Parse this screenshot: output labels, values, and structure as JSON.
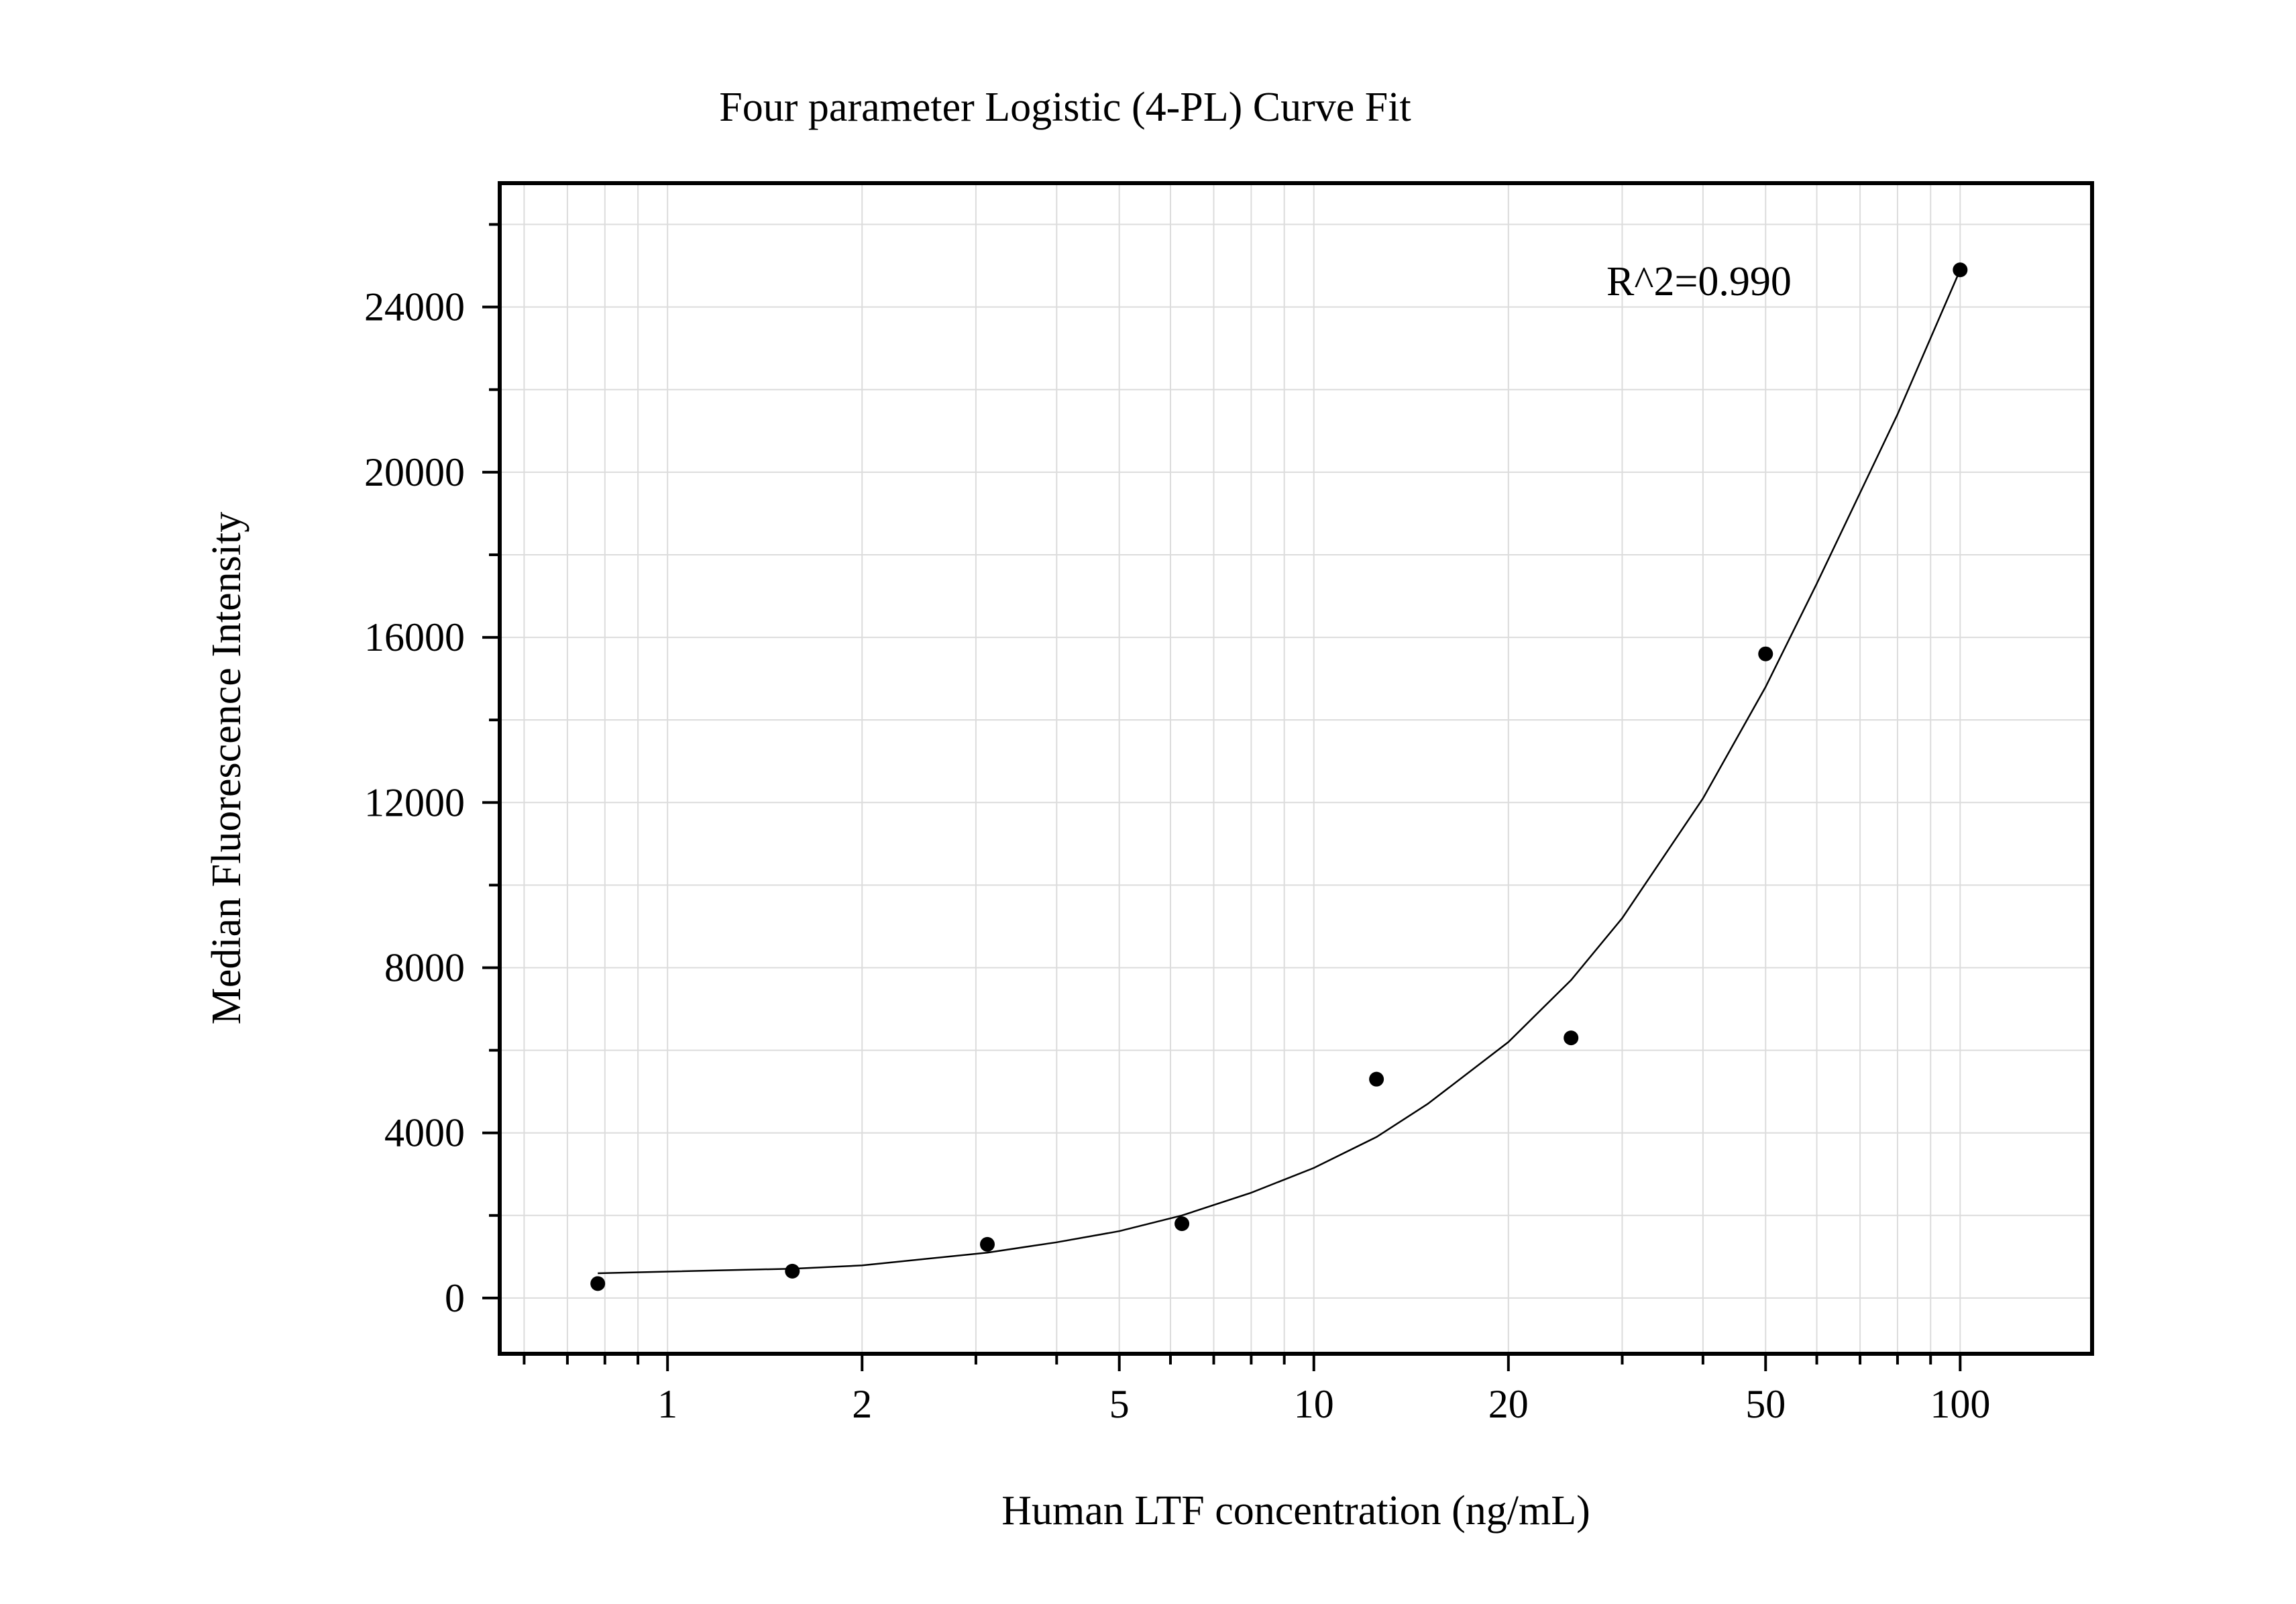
{
  "chart_data": {
    "type": "scatter",
    "title": "Four parameter Logistic (4-PL) Curve Fit",
    "xlabel": "Human LTF concentration (ng/mL)",
    "ylabel": "Median Fluorescence Intensity",
    "x_scale": "log",
    "xlim": [
      0.55,
      160
    ],
    "ylim": [
      -1350,
      27000
    ],
    "x_ticks": [
      1,
      2,
      5,
      10,
      20,
      50,
      100
    ],
    "x_tick_labels": [
      "1",
      "2",
      "5",
      "10",
      "20",
      "50",
      "100"
    ],
    "y_ticks": [
      0,
      4000,
      8000,
      12000,
      16000,
      20000,
      24000
    ],
    "y_tick_labels": [
      "0",
      "4000",
      "8000",
      "12000",
      "16000",
      "20000",
      "24000"
    ],
    "grid": true,
    "annotation": "R^2=0.990",
    "points": {
      "x": [
        0.78,
        1.56,
        3.125,
        6.25,
        12.5,
        25,
        50,
        100
      ],
      "y": [
        350,
        650,
        1300,
        1800,
        5300,
        6300,
        15600,
        24900
      ]
    },
    "fit": {
      "x": [
        0.78,
        1,
        1.56,
        2,
        3.125,
        4,
        5,
        6.25,
        8,
        10,
        12.5,
        15,
        20,
        25,
        30,
        40,
        50,
        60,
        80,
        100
      ],
      "y": [
        600,
        640,
        710,
        790,
        1100,
        1350,
        1620,
        2000,
        2550,
        3150,
        3900,
        4700,
        6200,
        7700,
        9200,
        12100,
        14800,
        17300,
        21400,
        24900
      ]
    }
  }
}
